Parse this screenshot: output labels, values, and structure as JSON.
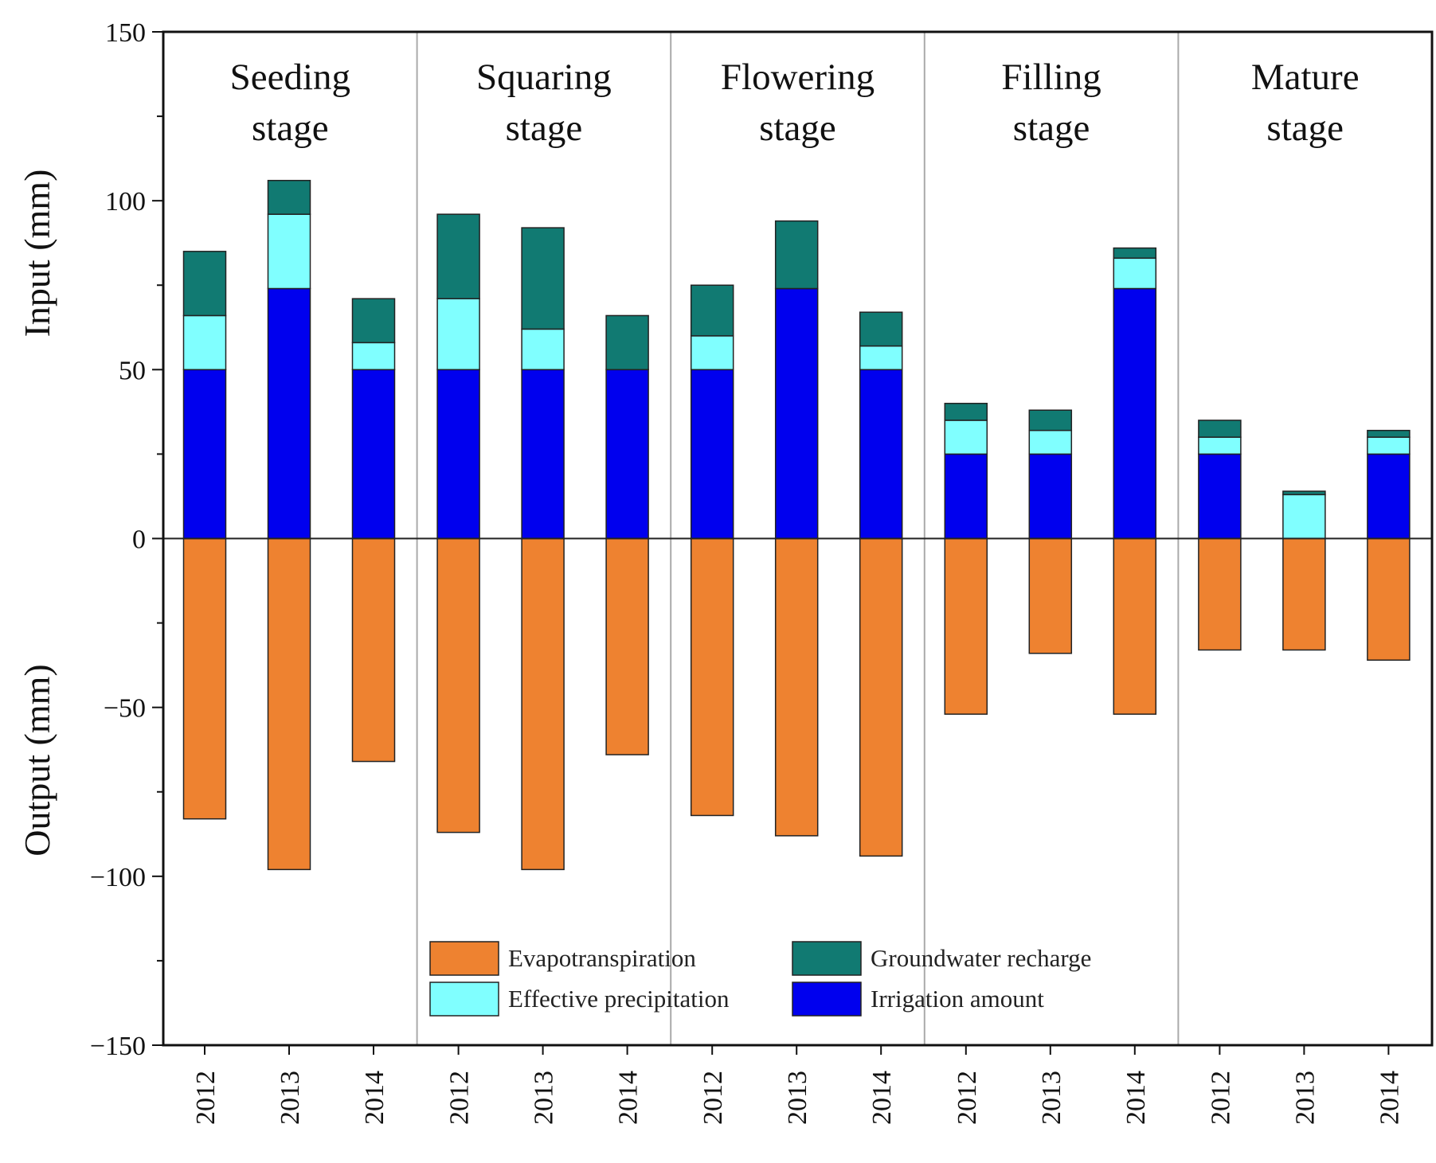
{
  "chart_data": {
    "type": "bar",
    "stacked": true,
    "ylabel_top": "Input (mm)",
    "ylabel_bottom": "Output (mm)",
    "ylim": [
      -150,
      150
    ],
    "yticks": [
      -150,
      -100,
      -50,
      0,
      50,
      100,
      150
    ],
    "grid": false,
    "legend_position": "bottom-center",
    "groups": [
      {
        "stage": [
          "Seeding",
          "stage"
        ],
        "years": [
          "2012",
          "2013",
          "2014"
        ]
      },
      {
        "stage": [
          "Squaring",
          "stage"
        ],
        "years": [
          "2012",
          "2013",
          "2014"
        ]
      },
      {
        "stage": [
          "Flowering",
          "stage"
        ],
        "years": [
          "2012",
          "2013",
          "2014"
        ]
      },
      {
        "stage": [
          "Filling",
          "stage"
        ],
        "years": [
          "2012",
          "2013",
          "2014"
        ]
      },
      {
        "stage": [
          "Mature",
          "stage"
        ],
        "years": [
          "2012",
          "2013",
          "2014"
        ]
      }
    ],
    "series": [
      {
        "name": "Irrigation amount",
        "color": "#0000ee",
        "direction": "input",
        "values": [
          50,
          74,
          50,
          50,
          50,
          50,
          50,
          74,
          50,
          25,
          25,
          74,
          25,
          0,
          25
        ]
      },
      {
        "name": "Effective precipitation",
        "color": "#80ffff",
        "direction": "input",
        "values": [
          16,
          22,
          8,
          21,
          12,
          0,
          10,
          0,
          7,
          10,
          7,
          9,
          5,
          13,
          5
        ]
      },
      {
        "name": "Groundwater recharge",
        "color": "#117a72",
        "direction": "input",
        "values": [
          19,
          10,
          13,
          25,
          30,
          16,
          15,
          20,
          10,
          5,
          6,
          3,
          5,
          1,
          2
        ]
      },
      {
        "name": "Evapotranspiration",
        "color": "#ee8230",
        "direction": "output",
        "values": [
          -83,
          -98,
          -66,
          -87,
          -98,
          -64,
          -82,
          -88,
          -94,
          -52,
          -34,
          -52,
          -33,
          -33,
          -36
        ]
      }
    ],
    "legend": {
      "items": [
        {
          "name": "Evapotranspiration",
          "label": "Evapotranspiration",
          "color": "#ee8230"
        },
        {
          "name": "Effective precipitation",
          "label": "Effective precipitation",
          "color": "#80ffff"
        },
        {
          "name": "Groundwater recharge",
          "label": "Groundwater recharge",
          "color": "#117a72"
        },
        {
          "name": "Irrigation amount",
          "label": "Irrigation amount",
          "color": "#0000ee"
        }
      ]
    }
  }
}
